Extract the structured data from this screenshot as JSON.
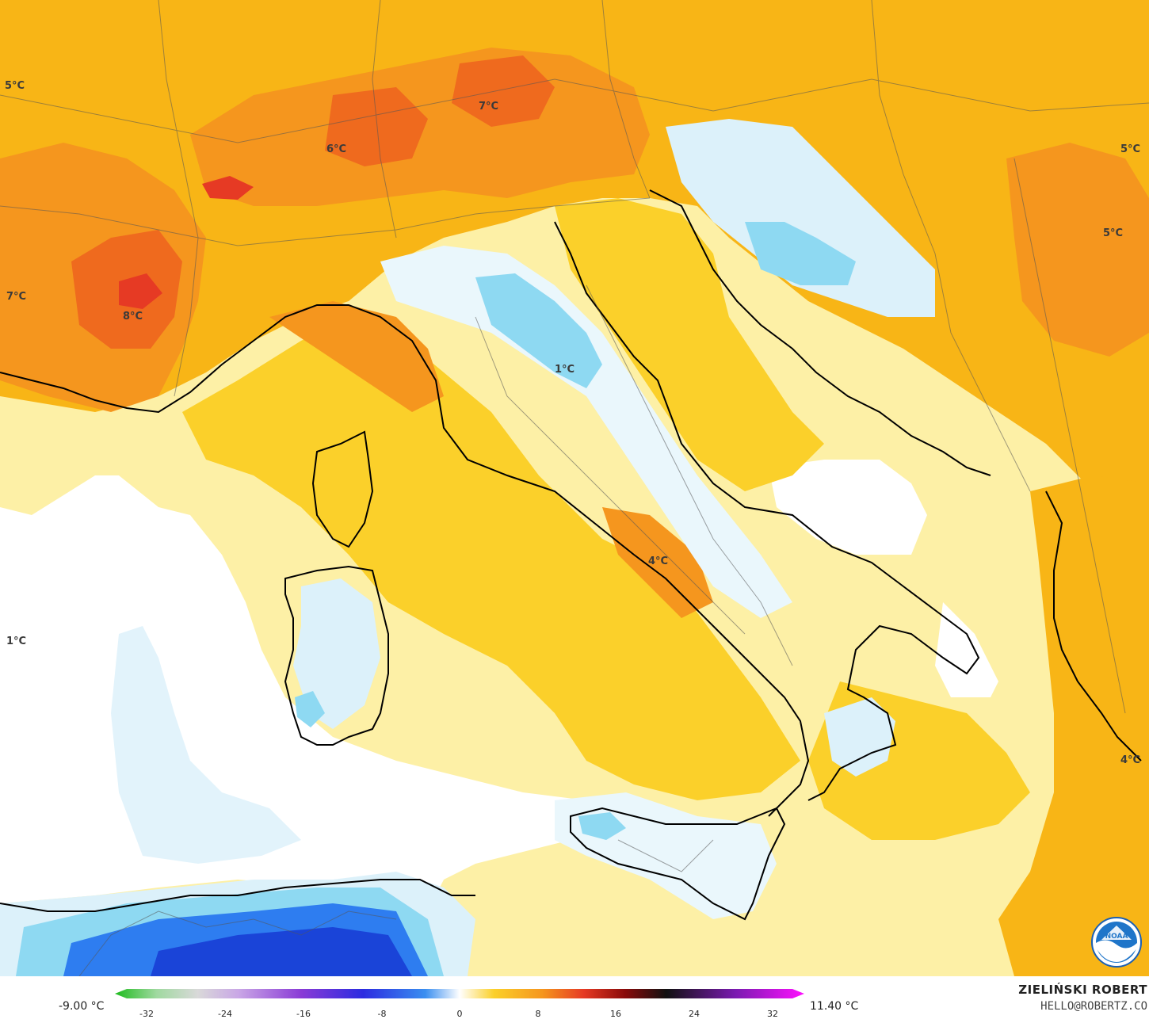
{
  "map": {
    "labels": [
      {
        "text": "5°C",
        "name": "label-5c-west"
      },
      {
        "text": "7°C",
        "name": "label-7c-north"
      },
      {
        "text": "6°C",
        "name": "label-6c-alps"
      },
      {
        "text": "5°C",
        "name": "label-5c-east"
      },
      {
        "text": "5°C",
        "name": "label-5c-balkan"
      },
      {
        "text": "7°C",
        "name": "label-7c-west"
      },
      {
        "text": "8°C",
        "name": "label-8c-france"
      },
      {
        "text": "1°C",
        "name": "label-1c-apennine"
      },
      {
        "text": "4°C",
        "name": "label-4c-campania"
      },
      {
        "text": "1°C",
        "name": "label-1c-sea"
      },
      {
        "text": "4°C",
        "name": "label-4c-greece"
      }
    ],
    "colors": {
      "sea_white": "#ffffff",
      "pale_yellow": "#fdf0a6",
      "yellow": "#fbd02a",
      "gold": "#f8b516",
      "orange": "#f5961e",
      "dark_orange": "#ef6a1e",
      "red": "#e63a24",
      "light_blue": "#dcf1fa",
      "cyan": "#8ed9f2",
      "blue": "#2e7df0",
      "dark_blue": "#1a44d8"
    }
  },
  "legend": {
    "min": "-9.00 °C",
    "max": "11.40 °C",
    "ticks": [
      "-32",
      "-24",
      "-16",
      "-8",
      "0",
      "8",
      "16",
      "24",
      "32"
    ]
  },
  "credits": {
    "author": "ZIELIŃSKI ROBERT",
    "email": "HELLO@ROBERTZ.CO",
    "logo": "NOAA"
  }
}
